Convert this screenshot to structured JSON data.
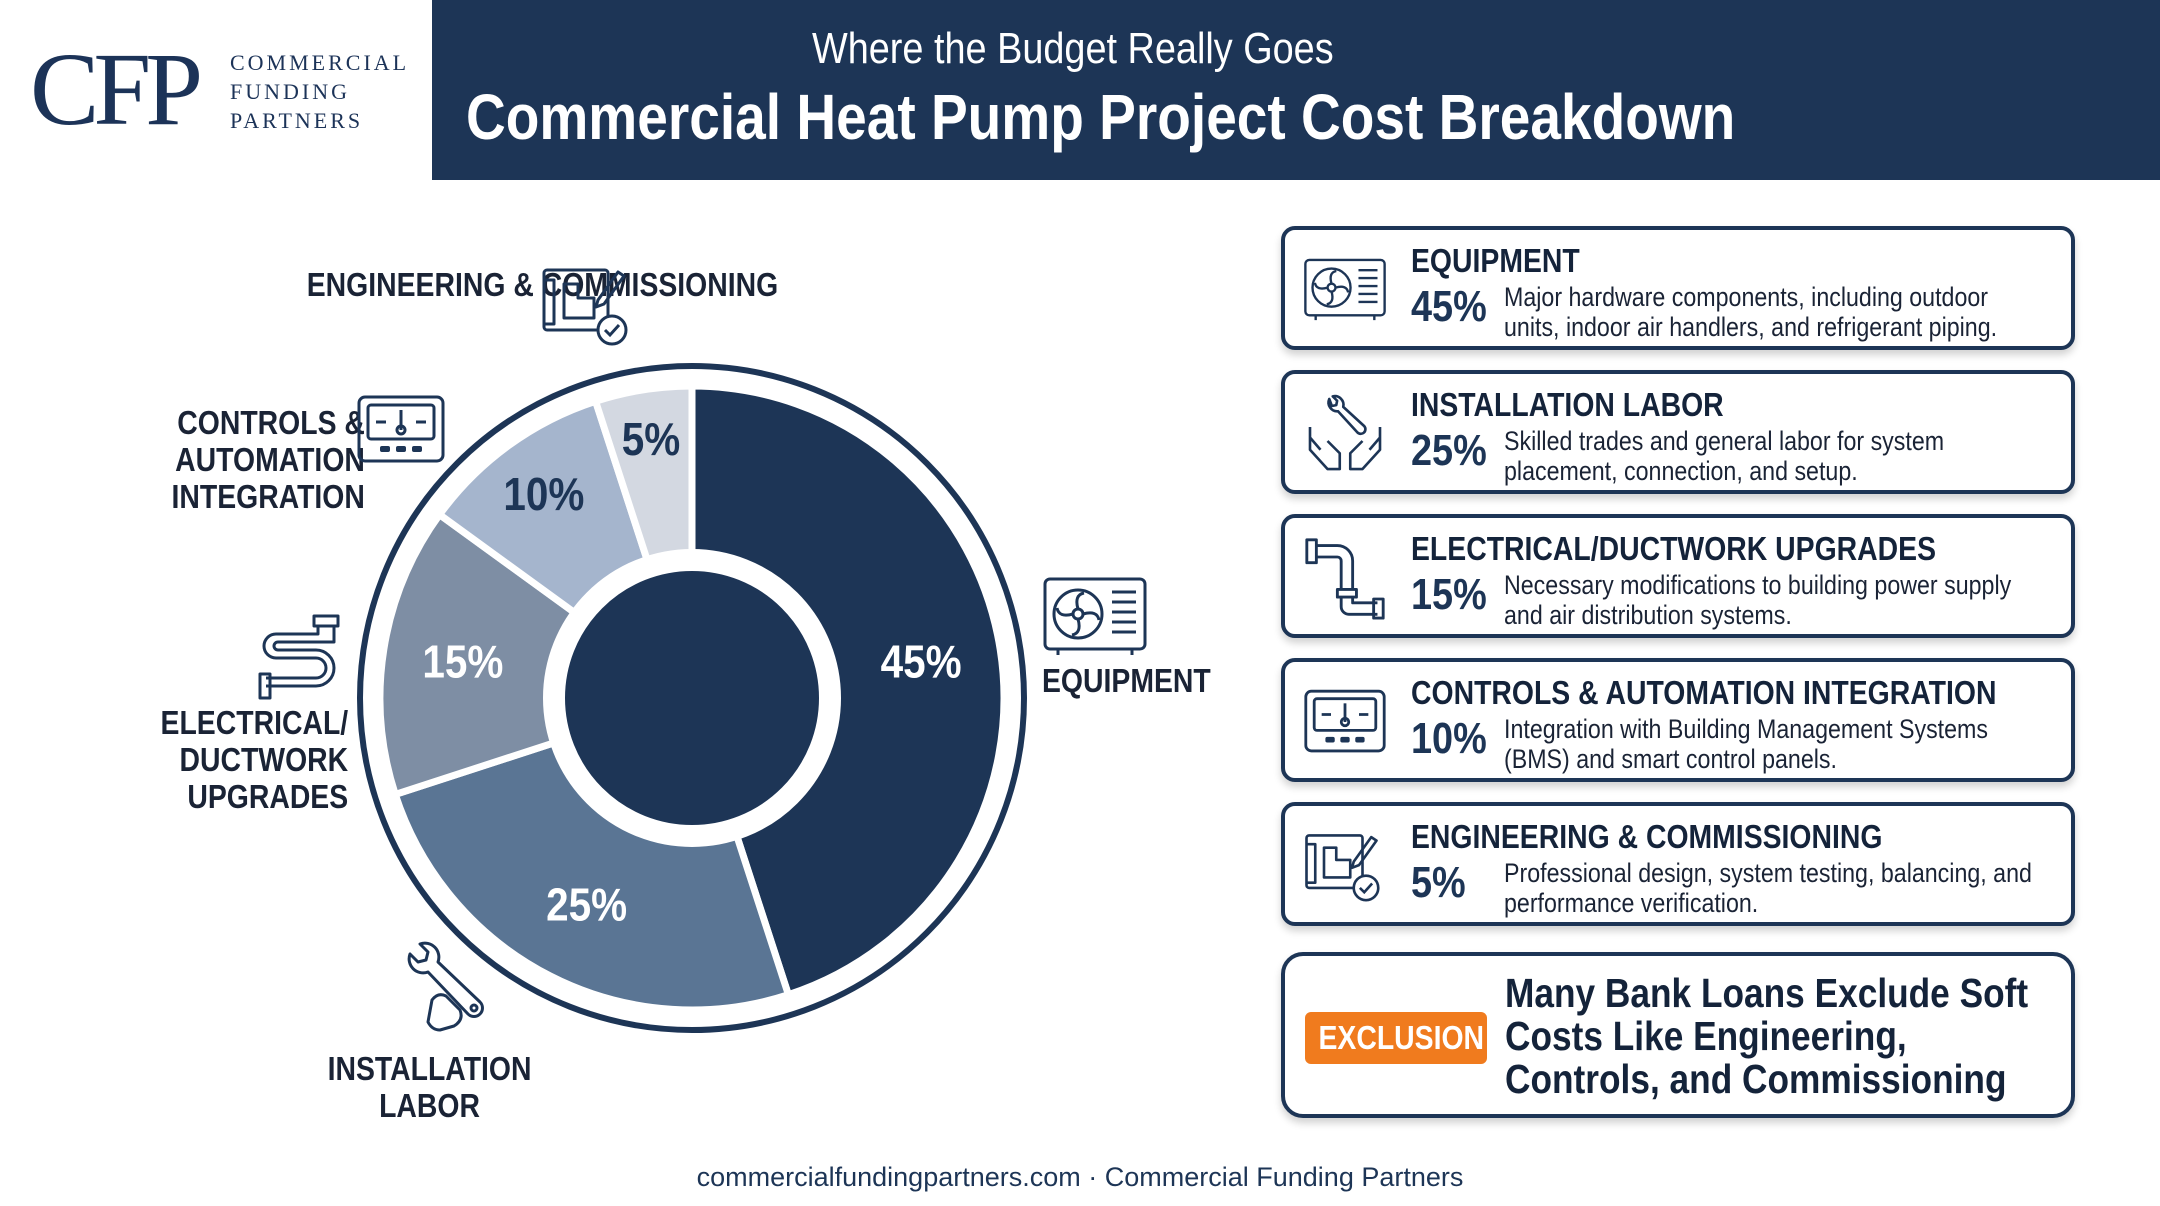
{
  "header": {
    "logo_mark": "CFP",
    "logo_lines": [
      "COMMERCIAL",
      "FUNDING",
      "PARTNERS"
    ],
    "subtitle": "Where the Budget Really Goes",
    "title": "Commercial Heat Pump Project Cost Breakdown"
  },
  "chart_data": {
    "type": "pie",
    "style": "donut",
    "unit": "%",
    "slices": [
      {
        "name": "EQUIPMENT",
        "label": "EQUIPMENT",
        "value": 45,
        "value_label": "45%",
        "color": "#1d3556",
        "text_color": "#ffffff"
      },
      {
        "name": "INSTALLATION LABOR",
        "label": "INSTALLATION\nLABOR",
        "value": 25,
        "value_label": "25%",
        "color": "#5a7594",
        "text_color": "#ffffff"
      },
      {
        "name": "ELECTRICAL/DUCTWORK UPGRADES",
        "label": "ELECTRICAL/\nDUCTWORK\nUPGRADES",
        "value": 15,
        "value_label": "15%",
        "color": "#7e8ea4",
        "text_color": "#ffffff"
      },
      {
        "name": "CONTROLS & AUTOMATION INTEGRATION",
        "label": "CONTROLS &\nAUTOMATION\nINTEGRATION",
        "value": 10,
        "value_label": "10%",
        "color": "#a5b5cd",
        "text_color": "#1d3556"
      },
      {
        "name": "ENGINEERING & COMMISSIONING",
        "label": "ENGINEERING &\nCOMMISSIONING",
        "value": 5,
        "value_label": "5%",
        "color": "#d3d8e1",
        "text_color": "#1d3556"
      }
    ]
  },
  "cards": [
    {
      "icon": "heat-pump-unit-icon",
      "title": "EQUIPMENT",
      "value": "45%",
      "description": "Major hardware components, including outdoor units, indoor air handlers, and refrigerant piping."
    },
    {
      "icon": "wrench-hands-icon",
      "title": "INSTALLATION LABOR",
      "value": "25%",
      "description": "Skilled trades and general labor for system placement, connection, and setup."
    },
    {
      "icon": "pipe-icon",
      "title": "ELECTRICAL/DUCTWORK UPGRADES",
      "value": "15%",
      "description": "Necessary modifications to building power supply and air distribution systems."
    },
    {
      "icon": "thermostat-panel-icon",
      "title": "CONTROLS & AUTOMATION INTEGRATION",
      "value": "10%",
      "description": "Integration with Building Management Systems (BMS) and smart control panels."
    },
    {
      "icon": "blueprint-check-icon",
      "title": "ENGINEERING & COMMISSIONING",
      "value": "5%",
      "description": "Professional design, system testing, balancing, and performance verification."
    }
  ],
  "exclusion": {
    "badge": "EXCLUSION",
    "text": "Many Bank Loans Exclude Soft Costs Like Engineering, Controls, and Commissioning",
    "badge_color": "#f07b1e"
  },
  "footer": "commercialfundingpartners.com · Commercial Funding Partners"
}
